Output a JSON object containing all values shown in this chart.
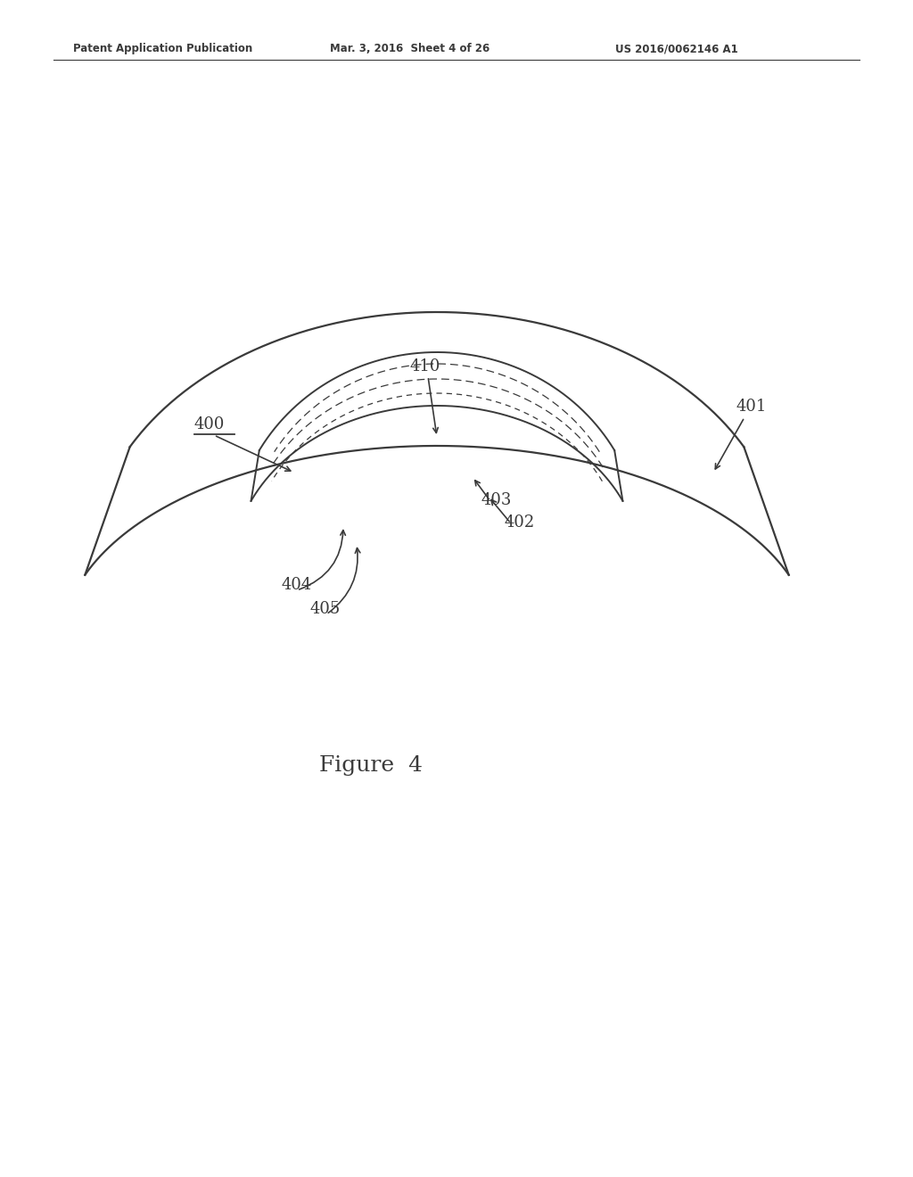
{
  "bg_color": "#ffffff",
  "line_color": "#3a3a3a",
  "header_left": "Patent Application Publication",
  "header_mid": "Mar. 3, 2016  Sheet 4 of 26",
  "header_right": "US 2016/0062146 A1",
  "figure_label": "Figure  4",
  "label_400": "400",
  "label_401": "401",
  "label_402": "402",
  "label_403": "403",
  "label_404": "404",
  "label_405": "405",
  "label_410": "410",
  "fig_width": 10.24,
  "fig_height": 13.2,
  "dpi": 100
}
